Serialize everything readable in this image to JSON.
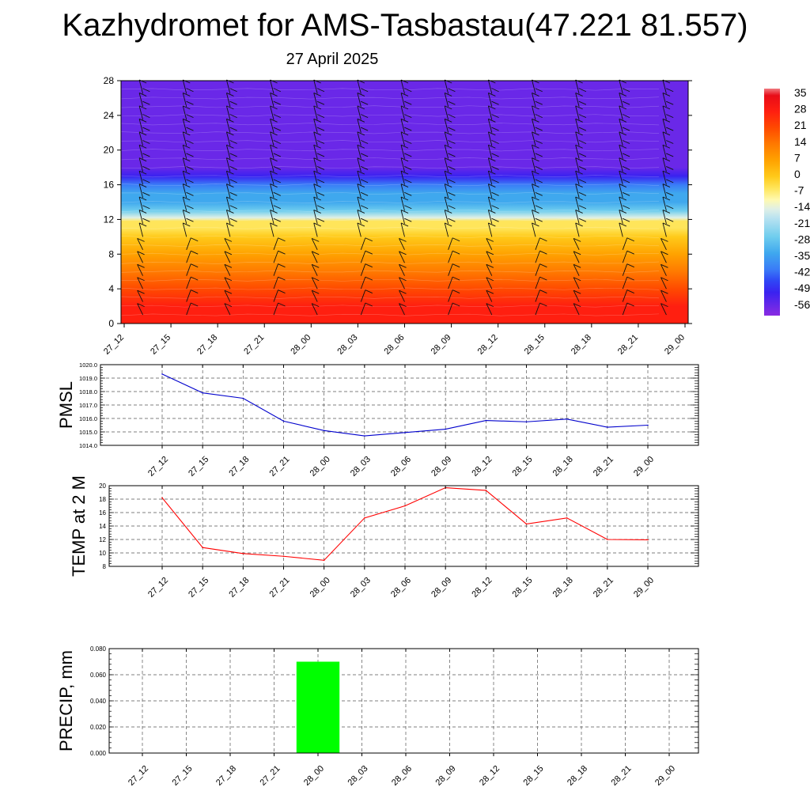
{
  "title": "Kazhydromet for AMS-Tasbastau(47.221 81.557)",
  "subtitle": "27 April 2025",
  "chart_data": [
    {
      "type": "heatmap",
      "x_ticks": [
        "27_12",
        "27_15",
        "27_18",
        "27_21",
        "28_00",
        "28_03",
        "28_06",
        "28_09",
        "28_12",
        "28_15",
        "28_18",
        "28_21",
        "29_00"
      ],
      "y_ticks": [
        0,
        4,
        8,
        12,
        16,
        20,
        24,
        28
      ],
      "ylim": [
        0,
        28
      ],
      "colorbar_labels": [
        "35",
        "28",
        "21",
        "14",
        "7",
        "0",
        "-7",
        "-14",
        "-21",
        "-28",
        "-35",
        "-42",
        "-49",
        "-56"
      ],
      "colorbar_range": [
        -60,
        38
      ],
      "temperature_profile": {
        "levels": [
          0,
          2,
          4,
          6,
          8,
          10,
          11,
          11.8,
          12.2,
          13,
          14,
          15,
          16,
          17,
          18,
          20,
          22,
          24,
          26,
          28
        ],
        "values": [
          34,
          28,
          21,
          14,
          7,
          1,
          -2,
          -5,
          -14,
          -21,
          -27,
          -33,
          -40,
          -49,
          -56,
          -55,
          -56,
          -54,
          -53,
          -52
        ]
      },
      "wind_barbs": "present"
    },
    {
      "type": "line",
      "ylabel": "PMSL",
      "x": [
        "27_12",
        "27_15",
        "27_18",
        "27_21",
        "28_00",
        "28_03",
        "28_06",
        "28_09",
        "28_12",
        "28_15",
        "28_18",
        "28_21",
        "29_00"
      ],
      "series": [
        {
          "values": [
            1019.3,
            1017.9,
            1017.5,
            1015.8,
            1015.1,
            1014.7,
            1014.95,
            1015.2,
            1015.85,
            1015.75,
            1015.95,
            1015.35,
            1015.5
          ]
        }
      ],
      "ylim": [
        1014.0,
        1020.0
      ],
      "y_ticks": [
        "1014.0",
        "1015.0",
        "1016.0",
        "1017.0",
        "1018.0",
        "1019.0",
        "1020.0"
      ],
      "color": "#0000cc",
      "grid": true
    },
    {
      "type": "line",
      "ylabel": "TEMP at 2 M",
      "x": [
        "27_12",
        "27_15",
        "27_18",
        "27_21",
        "28_00",
        "28_03",
        "28_06",
        "28_09",
        "28_12",
        "28_15",
        "28_18",
        "28_21",
        "29_00"
      ],
      "series": [
        {
          "values": [
            18.2,
            10.8,
            9.9,
            9.5,
            8.9,
            15.2,
            17.0,
            19.7,
            19.3,
            14.3,
            15.2,
            12.0,
            11.95
          ]
        }
      ],
      "ylim": [
        8,
        20
      ],
      "y_ticks": [
        "8",
        "10",
        "12",
        "14",
        "16",
        "18",
        "20"
      ],
      "color": "#ff0000",
      "grid": true
    },
    {
      "type": "bar",
      "ylabel": "PRECIP, mm",
      "categories": [
        "27_12",
        "27_15",
        "27_18",
        "27_21",
        "28_00",
        "28_03",
        "28_06",
        "28_09",
        "28_12",
        "28_15",
        "28_18",
        "28_21",
        "29_00"
      ],
      "values": [
        0,
        0,
        0,
        0,
        0.07,
        0,
        0,
        0,
        0,
        0,
        0,
        0,
        0
      ],
      "ylim": [
        0,
        0.08
      ],
      "y_ticks": [
        "0.000",
        "0.020",
        "0.040",
        "0.060",
        "0.080"
      ],
      "color": "#00ff00",
      "grid": true
    }
  ]
}
